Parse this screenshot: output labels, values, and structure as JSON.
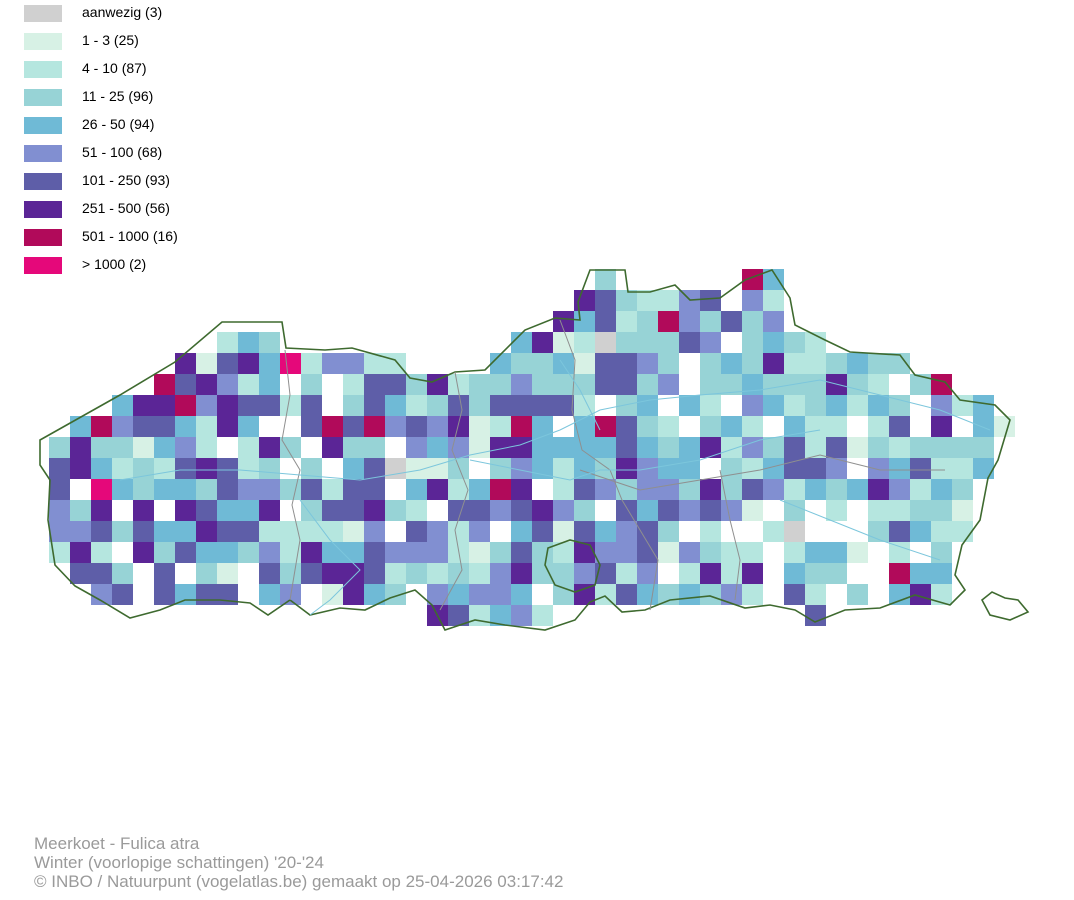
{
  "legend": {
    "items": [
      {
        "label": "aanwezig (3)",
        "color": "#d0d0d0"
      },
      {
        "label": "1 - 3 (25)",
        "color": "#d7f1e5"
      },
      {
        "label": "4 - 10 (87)",
        "color": "#b5e6df"
      },
      {
        "label": "11 - 25 (96)",
        "color": "#97d3d6"
      },
      {
        "label": "26 - 50 (94)",
        "color": "#6fbad6"
      },
      {
        "label": "51 - 100 (68)",
        "color": "#818fd1"
      },
      {
        "label": "101 - 250 (93)",
        "color": "#5e5ea8"
      },
      {
        "label": "251 - 500 (56)",
        "color": "#5b2596"
      },
      {
        "label": "501 - 1000 (16)",
        "color": "#b10a5a"
      },
      {
        "label": "> 1000 (2)",
        "color": "#e5087a"
      }
    ]
  },
  "map": {
    "colors": {
      "border": "#3e6a2f",
      "province_border": "#8f8f8f",
      "river": "#7cc6dc"
    }
  },
  "credits": {
    "species": "Meerkoet - Fulica atra",
    "period": "Winter (voorlopige schattingen) '20-'24",
    "copyright": "© INBO / Natuurpunt (vogelatlas.be) gemaakt op 25-04-2026 03:17:42"
  }
}
